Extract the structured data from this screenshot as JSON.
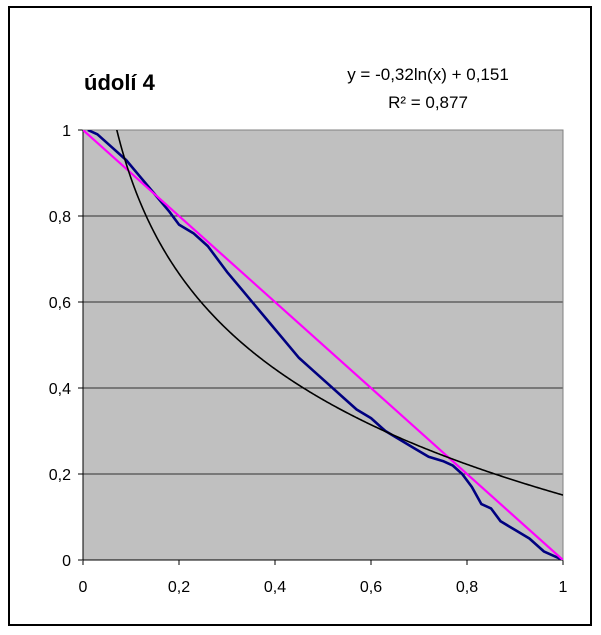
{
  "chart_data": {
    "type": "line",
    "title": "údolí 4",
    "annotation": {
      "equation": "y = -0,32ln(x) + 0,151",
      "r_squared": "R² = 0,877"
    },
    "xlim": [
      0,
      1
    ],
    "ylim": [
      0,
      1
    ],
    "x_ticks": [
      "0",
      "0,2",
      "0,4",
      "0,6",
      "0,8",
      "1"
    ],
    "y_ticks": [
      "0",
      "0,2",
      "0,4",
      "0,6",
      "0,8",
      "1"
    ],
    "grid": "horizontal",
    "plot_background": "#c0c0c0",
    "series": [
      {
        "color": "#000080",
        "x": [
          0.01,
          0.03,
          0.06,
          0.09,
          0.12,
          0.15,
          0.18,
          0.2,
          0.23,
          0.26,
          0.28,
          0.3,
          0.33,
          0.36,
          0.39,
          0.42,
          0.45,
          0.48,
          0.51,
          0.54,
          0.57,
          0.6,
          0.63,
          0.66,
          0.69,
          0.72,
          0.75,
          0.77,
          0.79,
          0.81,
          0.83,
          0.85,
          0.87,
          0.9,
          0.93,
          0.96,
          1.0
        ],
        "y": [
          1.0,
          0.99,
          0.96,
          0.93,
          0.89,
          0.85,
          0.81,
          0.78,
          0.76,
          0.73,
          0.7,
          0.67,
          0.63,
          0.59,
          0.55,
          0.51,
          0.47,
          0.44,
          0.41,
          0.38,
          0.35,
          0.33,
          0.3,
          0.28,
          0.26,
          0.24,
          0.23,
          0.22,
          0.2,
          0.17,
          0.13,
          0.12,
          0.09,
          0.07,
          0.05,
          0.02,
          0.0
        ]
      },
      {
        "color": "#ff00ff",
        "x": [
          0,
          1
        ],
        "y": [
          1,
          0
        ]
      },
      {
        "color": "#000000",
        "trendline": "logarithmic",
        "a": -0.32,
        "b": 0.151
      }
    ]
  }
}
